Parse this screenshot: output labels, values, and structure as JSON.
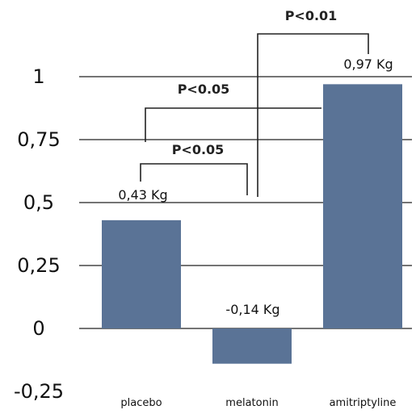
{
  "chart_data": {
    "type": "bar",
    "categories": [
      "placebo",
      "melatonin",
      "amitriptyline"
    ],
    "values": [
      0.43,
      -0.14,
      0.97
    ],
    "data_labels": [
      "0,43 Kg",
      "-0,14 Kg",
      "0,97 Kg"
    ],
    "ylim": [
      -0.25,
      1
    ],
    "yticks": [
      -0.25,
      0,
      0.25,
      0.5,
      0.75,
      1
    ],
    "ytick_labels": [
      "-0,25",
      "0",
      "0,25",
      "0,5",
      "0,75",
      "1"
    ],
    "grid": true,
    "bar_color": "#5a7396",
    "annotations": [
      {
        "text": "P<0.05",
        "from": "placebo",
        "to": "melatonin"
      },
      {
        "text": "P<0.05",
        "from": "placebo",
        "to": "amitriptyline"
      },
      {
        "text": "P<0.01",
        "from": "melatonin",
        "to": "amitriptyline"
      }
    ]
  }
}
